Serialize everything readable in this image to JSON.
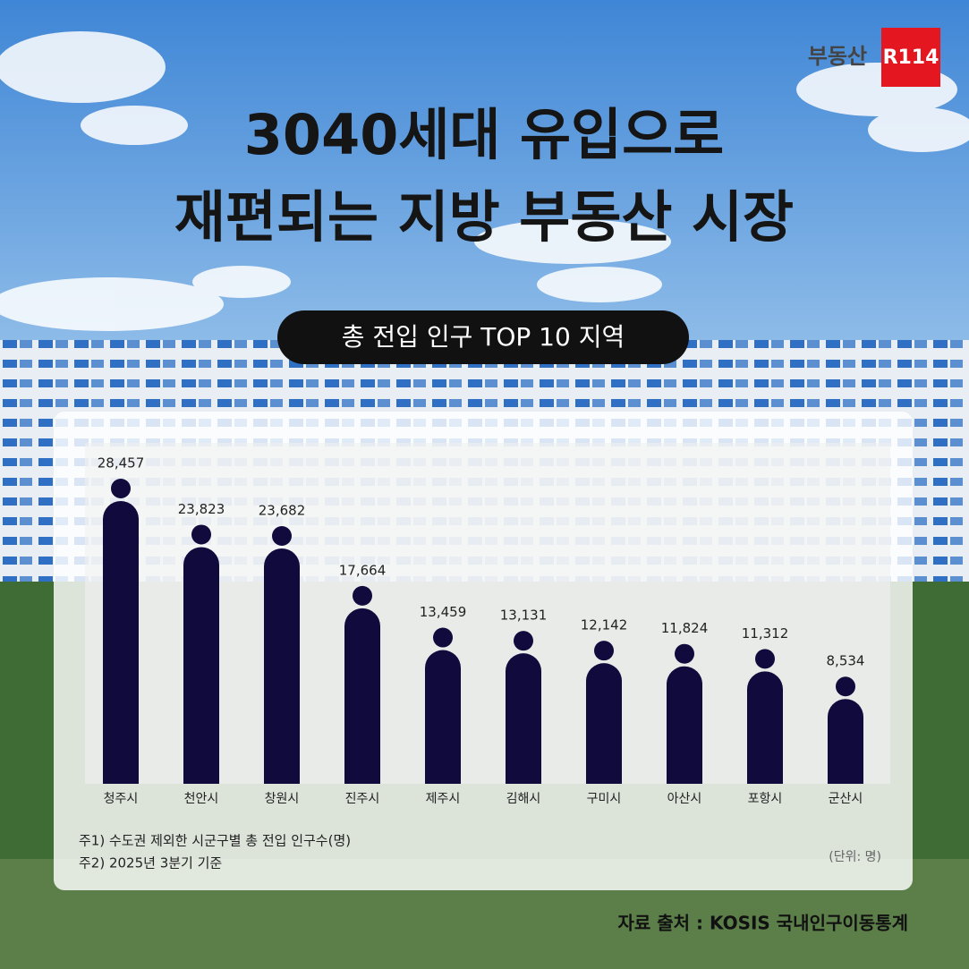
{
  "brand": {
    "name": "부동산",
    "mark": "R114"
  },
  "chart_data": {
    "type": "bar",
    "title": [
      "3040세대 유입으로",
      "재편되는 지방 부동산 시장"
    ],
    "subtitle": "총 전입 인구 TOP 10 지역",
    "categories": [
      "청주시",
      "천안시",
      "창원시",
      "진주시",
      "제주시",
      "김해시",
      "구미시",
      "아산시",
      "포항시",
      "군산시"
    ],
    "values": [
      28457,
      23823,
      23682,
      17664,
      13459,
      13131,
      12142,
      11824,
      11312,
      8534
    ],
    "value_labels": [
      "28,457",
      "23,823",
      "23,682",
      "17,664",
      "13,459",
      "13,131",
      "12,142",
      "11,824",
      "11,312",
      "8,534"
    ],
    "color": "#100a3d",
    "notes": [
      "주1) 수도권 제외한 시군구별 총 전입 인구수(명)",
      "주2) 2025년 3분기 기준"
    ],
    "unit": "(단위: 명)",
    "source": "자료 출처 : KOSIS 국내인구이동통계"
  }
}
